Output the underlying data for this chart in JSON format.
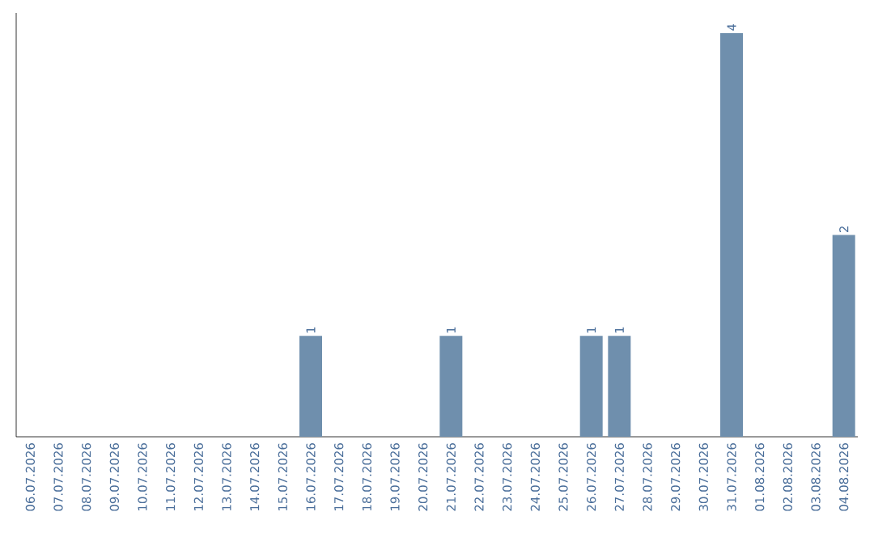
{
  "chart_data": {
    "type": "bar",
    "categories": [
      "06.07.2026",
      "07.07.2026",
      "08.07.2026",
      "09.07.2026",
      "10.07.2026",
      "11.07.2026",
      "12.07.2026",
      "13.07.2026",
      "14.07.2026",
      "15.07.2026",
      "16.07.2026",
      "17.07.2026",
      "18.07.2026",
      "19.07.2026",
      "20.07.2026",
      "21.07.2026",
      "22.07.2026",
      "23.07.2026",
      "24.07.2026",
      "25.07.2026",
      "26.07.2026",
      "27.07.2026",
      "28.07.2026",
      "29.07.2026",
      "30.07.2026",
      "31.07.2026",
      "01.08.2026",
      "02.08.2026",
      "03.08.2026",
      "04.08.2026"
    ],
    "values": [
      0,
      0,
      0,
      0,
      0,
      0,
      0,
      0,
      0,
      0,
      1,
      0,
      0,
      0,
      0,
      1,
      0,
      0,
      0,
      0,
      1,
      1,
      0,
      0,
      0,
      4,
      0,
      0,
      0,
      2
    ],
    "value_labels": [
      null,
      null,
      null,
      null,
      null,
      null,
      null,
      null,
      null,
      null,
      "1",
      null,
      null,
      null,
      null,
      "1",
      null,
      null,
      null,
      null,
      "1",
      "1",
      null,
      null,
      null,
      "4",
      null,
      null,
      null,
      "2"
    ],
    "color": "#6f8fad",
    "tick_labels": "x"
  }
}
